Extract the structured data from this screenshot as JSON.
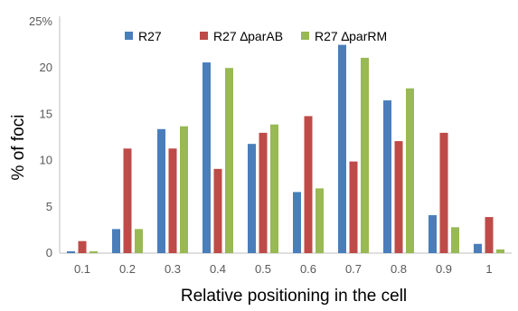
{
  "chart_data": {
    "type": "bar",
    "title": "",
    "xlabel": "Relative positioning in the cell",
    "ylabel": "% of foci",
    "ylim": [
      0,
      25
    ],
    "yticks": [
      "0",
      "5",
      "10",
      "15",
      "20",
      "25%"
    ],
    "ytick_values": [
      0,
      5,
      10,
      15,
      20,
      25
    ],
    "categories": [
      "0.1",
      "0.2",
      "0.3",
      "0.4",
      "0.5",
      "0.6",
      "0.7",
      "0.8",
      "0.9",
      "1"
    ],
    "legend_position": "top",
    "grid": false,
    "series": [
      {
        "name": "R27",
        "color": "#4a7ebb",
        "values": [
          0.2,
          2.6,
          13.4,
          20.6,
          11.8,
          6.6,
          22.5,
          16.5,
          4.1,
          1.0
        ]
      },
      {
        "name": "R27 ∆parAB",
        "color": "#be4b48",
        "values": [
          1.3,
          11.3,
          11.3,
          9.1,
          13.0,
          14.8,
          9.9,
          12.1,
          13.0,
          3.9
        ]
      },
      {
        "name": "R27 ∆parRM",
        "color": "#98b954",
        "values": [
          0.2,
          2.6,
          13.7,
          20.0,
          13.9,
          7.0,
          21.1,
          17.8,
          2.8,
          0.4
        ]
      }
    ]
  }
}
